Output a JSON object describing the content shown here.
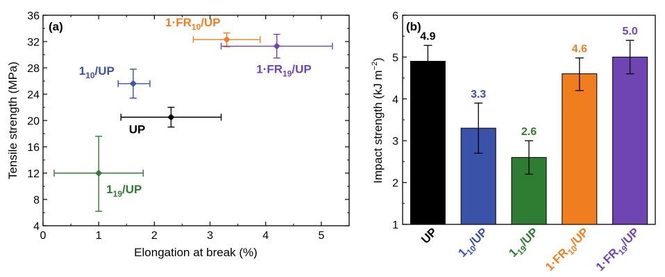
{
  "chart_data": [
    {
      "type": "scatter",
      "panel_label": "(a)",
      "xlabel": "Elongation at break (%)",
      "ylabel": "Tensile strength (MPa)",
      "xlim": [
        0,
        5.5
      ],
      "ylim": [
        4,
        36
      ],
      "xticks": [
        0,
        1,
        2,
        3,
        4,
        5
      ],
      "yticks": [
        4,
        8,
        12,
        16,
        20,
        24,
        28,
        32,
        36
      ],
      "grid": false,
      "points": [
        {
          "main": "UP",
          "sub": "",
          "tail": "",
          "color": "#000000",
          "x": 2.3,
          "y": 20.5,
          "x_err": [
            1.4,
            3.2
          ],
          "y_err": [
            19.0,
            22.0
          ]
        },
        {
          "main": "1",
          "sub": "10",
          "tail": "/UP",
          "color": "#3a52a8",
          "x": 1.62,
          "y": 25.6,
          "x_err": [
            1.35,
            1.92
          ],
          "y_err": [
            23.4,
            27.8
          ]
        },
        {
          "main": "1",
          "sub": "19",
          "tail": "/UP",
          "color": "#2f7d32",
          "x": 1.0,
          "y": 12.0,
          "x_err": [
            0.2,
            1.8
          ],
          "y_err": [
            6.2,
            17.6
          ]
        },
        {
          "main": "1·FR",
          "sub": "10",
          "tail": "/UP",
          "color": "#f07e1e",
          "x": 3.3,
          "y": 32.3,
          "x_err": [
            2.7,
            3.9
          ],
          "y_err": [
            31.2,
            33.3
          ]
        },
        {
          "main": "1·FR",
          "sub": "19",
          "tail": "/UP",
          "color": "#6f45b4",
          "x": 4.2,
          "y": 31.3,
          "x_err": [
            3.2,
            5.2
          ],
          "y_err": [
            29.5,
            33.1
          ]
        }
      ]
    },
    {
      "type": "bar",
      "panel_label": "(b)",
      "xlabel": "",
      "ylabel": "Impact strength (kJ m",
      "ylabel_sup": "−2",
      "ylabel_end": ")",
      "ylim": [
        1,
        6
      ],
      "yticks": [
        1,
        2,
        3,
        4,
        5,
        6
      ],
      "grid": false,
      "bars": [
        {
          "main": "UP",
          "sub": "",
          "tail": "",
          "value": 4.9,
          "label": "4.9",
          "color": "#000000",
          "err": [
            4.55,
            5.28
          ]
        },
        {
          "main": "1",
          "sub": "10",
          "tail": "/UP",
          "value": 3.3,
          "label": "3.3",
          "color": "#3a52a8",
          "err": [
            2.7,
            3.9
          ]
        },
        {
          "main": "1",
          "sub": "19",
          "tail": "/UP",
          "value": 2.6,
          "label": "2.6",
          "color": "#2f7d32",
          "err": [
            2.2,
            3.0
          ]
        },
        {
          "main": "1·FR",
          "sub": "10",
          "tail": "/UP",
          "value": 4.6,
          "label": "4.6",
          "color": "#f07e1e",
          "err": [
            4.2,
            4.98
          ]
        },
        {
          "main": "1·FR",
          "sub": "19",
          "tail": "/UP",
          "value": 5.0,
          "label": "5.0",
          "color": "#6f45b4",
          "err": [
            4.6,
            5.4
          ]
        }
      ]
    }
  ]
}
